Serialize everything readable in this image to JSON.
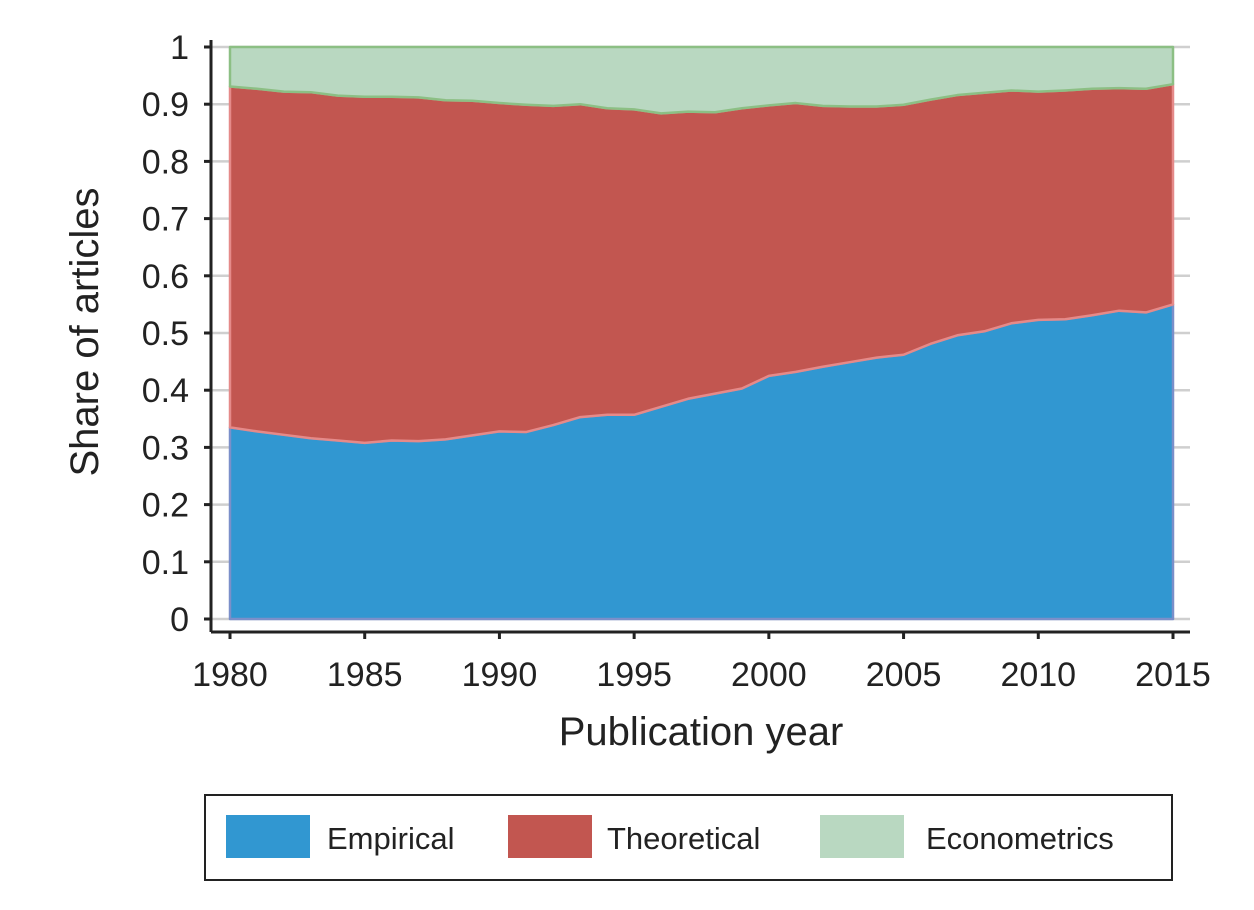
{
  "chart_data": {
    "type": "area",
    "stacked": true,
    "title": "",
    "xlabel": "Publication year",
    "ylabel": "Share of articles",
    "xlim": [
      1980,
      2015
    ],
    "ylim": [
      0,
      1
    ],
    "grid": true,
    "legend_position": "bottom",
    "x_ticks": [
      "1980",
      "1985",
      "1990",
      "1995",
      "2000",
      "2005",
      "2010",
      "2015"
    ],
    "y_ticks": [
      "0",
      "0.1",
      "0.2",
      "0.3",
      "0.4",
      "0.5",
      "0.6",
      "0.7",
      "0.8",
      "0.9",
      "1"
    ],
    "x": [
      1980,
      1981,
      1982,
      1983,
      1984,
      1985,
      1986,
      1987,
      1988,
      1989,
      1990,
      1991,
      1992,
      1993,
      1994,
      1995,
      1996,
      1997,
      1998,
      1999,
      2000,
      2001,
      2002,
      2003,
      2004,
      2005,
      2006,
      2007,
      2008,
      2009,
      2010,
      2011,
      2012,
      2013,
      2014,
      2015
    ],
    "series": [
      {
        "name": "Empirical",
        "color": "#3197d1",
        "edge": "#7b8fc9",
        "values": [
          0.335,
          0.328,
          0.322,
          0.316,
          0.312,
          0.308,
          0.312,
          0.311,
          0.314,
          0.321,
          0.328,
          0.327,
          0.339,
          0.353,
          0.357,
          0.357,
          0.371,
          0.385,
          0.394,
          0.403,
          0.425,
          0.432,
          0.441,
          0.449,
          0.457,
          0.462,
          0.481,
          0.496,
          0.503,
          0.517,
          0.523,
          0.524,
          0.531,
          0.539,
          0.536,
          0.55
        ]
      },
      {
        "name": "Theoretical",
        "color": "#c25650",
        "edge": "#e58a89",
        "values": [
          0.596,
          0.599,
          0.6,
          0.605,
          0.603,
          0.605,
          0.601,
          0.601,
          0.593,
          0.585,
          0.574,
          0.572,
          0.558,
          0.547,
          0.536,
          0.534,
          0.513,
          0.502,
          0.492,
          0.49,
          0.473,
          0.47,
          0.456,
          0.447,
          0.439,
          0.437,
          0.427,
          0.42,
          0.417,
          0.407,
          0.399,
          0.4,
          0.396,
          0.389,
          0.391,
          0.385
        ]
      },
      {
        "name": "Econometrics",
        "color": "#b9d8c1",
        "edge": "#8cbf84",
        "values": [
          0.069,
          0.073,
          0.078,
          0.079,
          0.085,
          0.087,
          0.087,
          0.088,
          0.093,
          0.094,
          0.098,
          0.101,
          0.103,
          0.1,
          0.107,
          0.109,
          0.116,
          0.113,
          0.114,
          0.107,
          0.102,
          0.098,
          0.103,
          0.104,
          0.104,
          0.101,
          0.092,
          0.084,
          0.08,
          0.076,
          0.078,
          0.076,
          0.073,
          0.072,
          0.073,
          0.065
        ]
      }
    ]
  }
}
